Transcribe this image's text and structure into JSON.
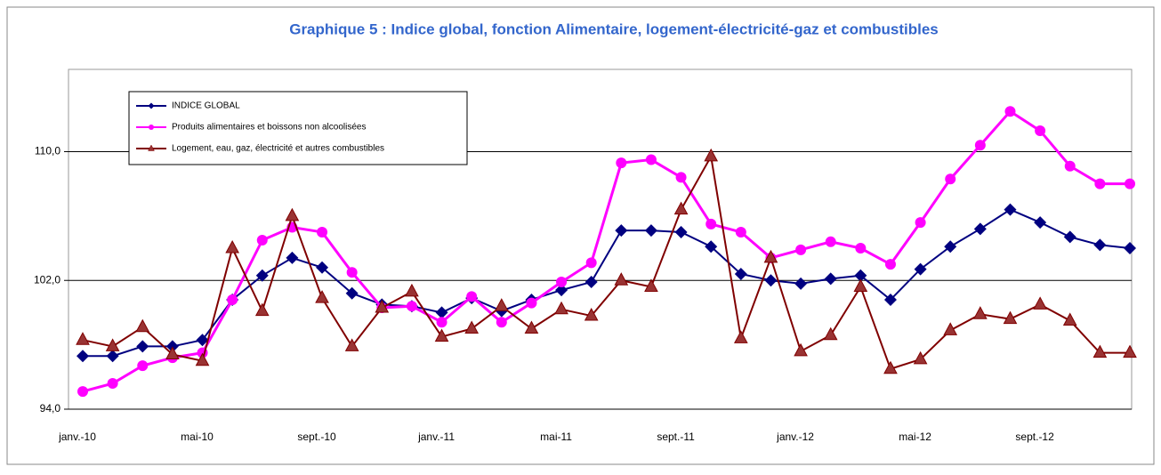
{
  "chart_data": {
    "type": "line",
    "title": "Graphique 5 : Indice global, fonction Alimentaire, logement-électricité-gaz et combustibles",
    "categories": [
      "janv.-10",
      null,
      null,
      null,
      "mai-10",
      null,
      null,
      null,
      "sept.-10",
      null,
      null,
      null,
      "janv.-11",
      null,
      null,
      null,
      "mai-11",
      null,
      null,
      null,
      "sept.-11",
      null,
      null,
      null,
      "janv.-12",
      null,
      null,
      null,
      "mai-12",
      null,
      null,
      null,
      "sept.-12",
      null,
      null,
      null
    ],
    "ylim": [
      94,
      115
    ],
    "yticks": [
      {
        "value": 94,
        "label": "94,0"
      },
      {
        "value": 102,
        "label": "102,0"
      },
      {
        "value": 110,
        "label": "110,0"
      }
    ],
    "grid": true,
    "legend": "upper left",
    "series": [
      {
        "name": "INDICE GLOBAL",
        "color": "#000080",
        "marker": "diamond",
        "values": [
          97.3,
          97.3,
          97.9,
          97.9,
          98.3,
          100.8,
          102.3,
          103.4,
          102.8,
          101.2,
          100.5,
          100.4,
          100.0,
          100.9,
          100.1,
          100.8,
          101.4,
          101.9,
          105.1,
          105.1,
          105.0,
          104.1,
          102.4,
          102.0,
          101.8,
          102.1,
          102.3,
          100.8,
          102.7,
          104.1,
          105.2,
          106.4,
          105.6,
          104.7,
          104.2,
          104.0
        ]
      },
      {
        "name": "Produits alimentaires et boissons non alcoolisées",
        "color": "#ff00ff",
        "marker": "circle",
        "values": [
          95.1,
          95.6,
          96.7,
          97.2,
          97.5,
          100.8,
          104.5,
          105.3,
          105.0,
          102.5,
          100.3,
          100.4,
          99.4,
          101.0,
          99.4,
          100.6,
          101.9,
          103.1,
          109.3,
          109.5,
          108.4,
          105.5,
          105.0,
          103.4,
          103.9,
          104.4,
          104.0,
          103.0,
          105.6,
          108.3,
          110.4,
          112.5,
          111.3,
          109.1,
          108.0,
          108.0
        ]
      },
      {
        "name": "Logement, eau, gaz, électricité et autres combustibles",
        "color": "#800000",
        "marker": "triangle",
        "values": [
          98.3,
          97.9,
          99.1,
          97.4,
          97.0,
          104.0,
          100.1,
          106.0,
          100.9,
          97.9,
          100.3,
          101.3,
          98.5,
          99.0,
          100.4,
          99.0,
          100.2,
          99.8,
          102.0,
          101.6,
          106.4,
          109.7,
          98.4,
          103.4,
          97.6,
          98.6,
          101.6,
          96.5,
          97.1,
          98.9,
          99.9,
          99.6,
          100.5,
          99.5,
          97.5,
          97.5
        ]
      }
    ]
  }
}
